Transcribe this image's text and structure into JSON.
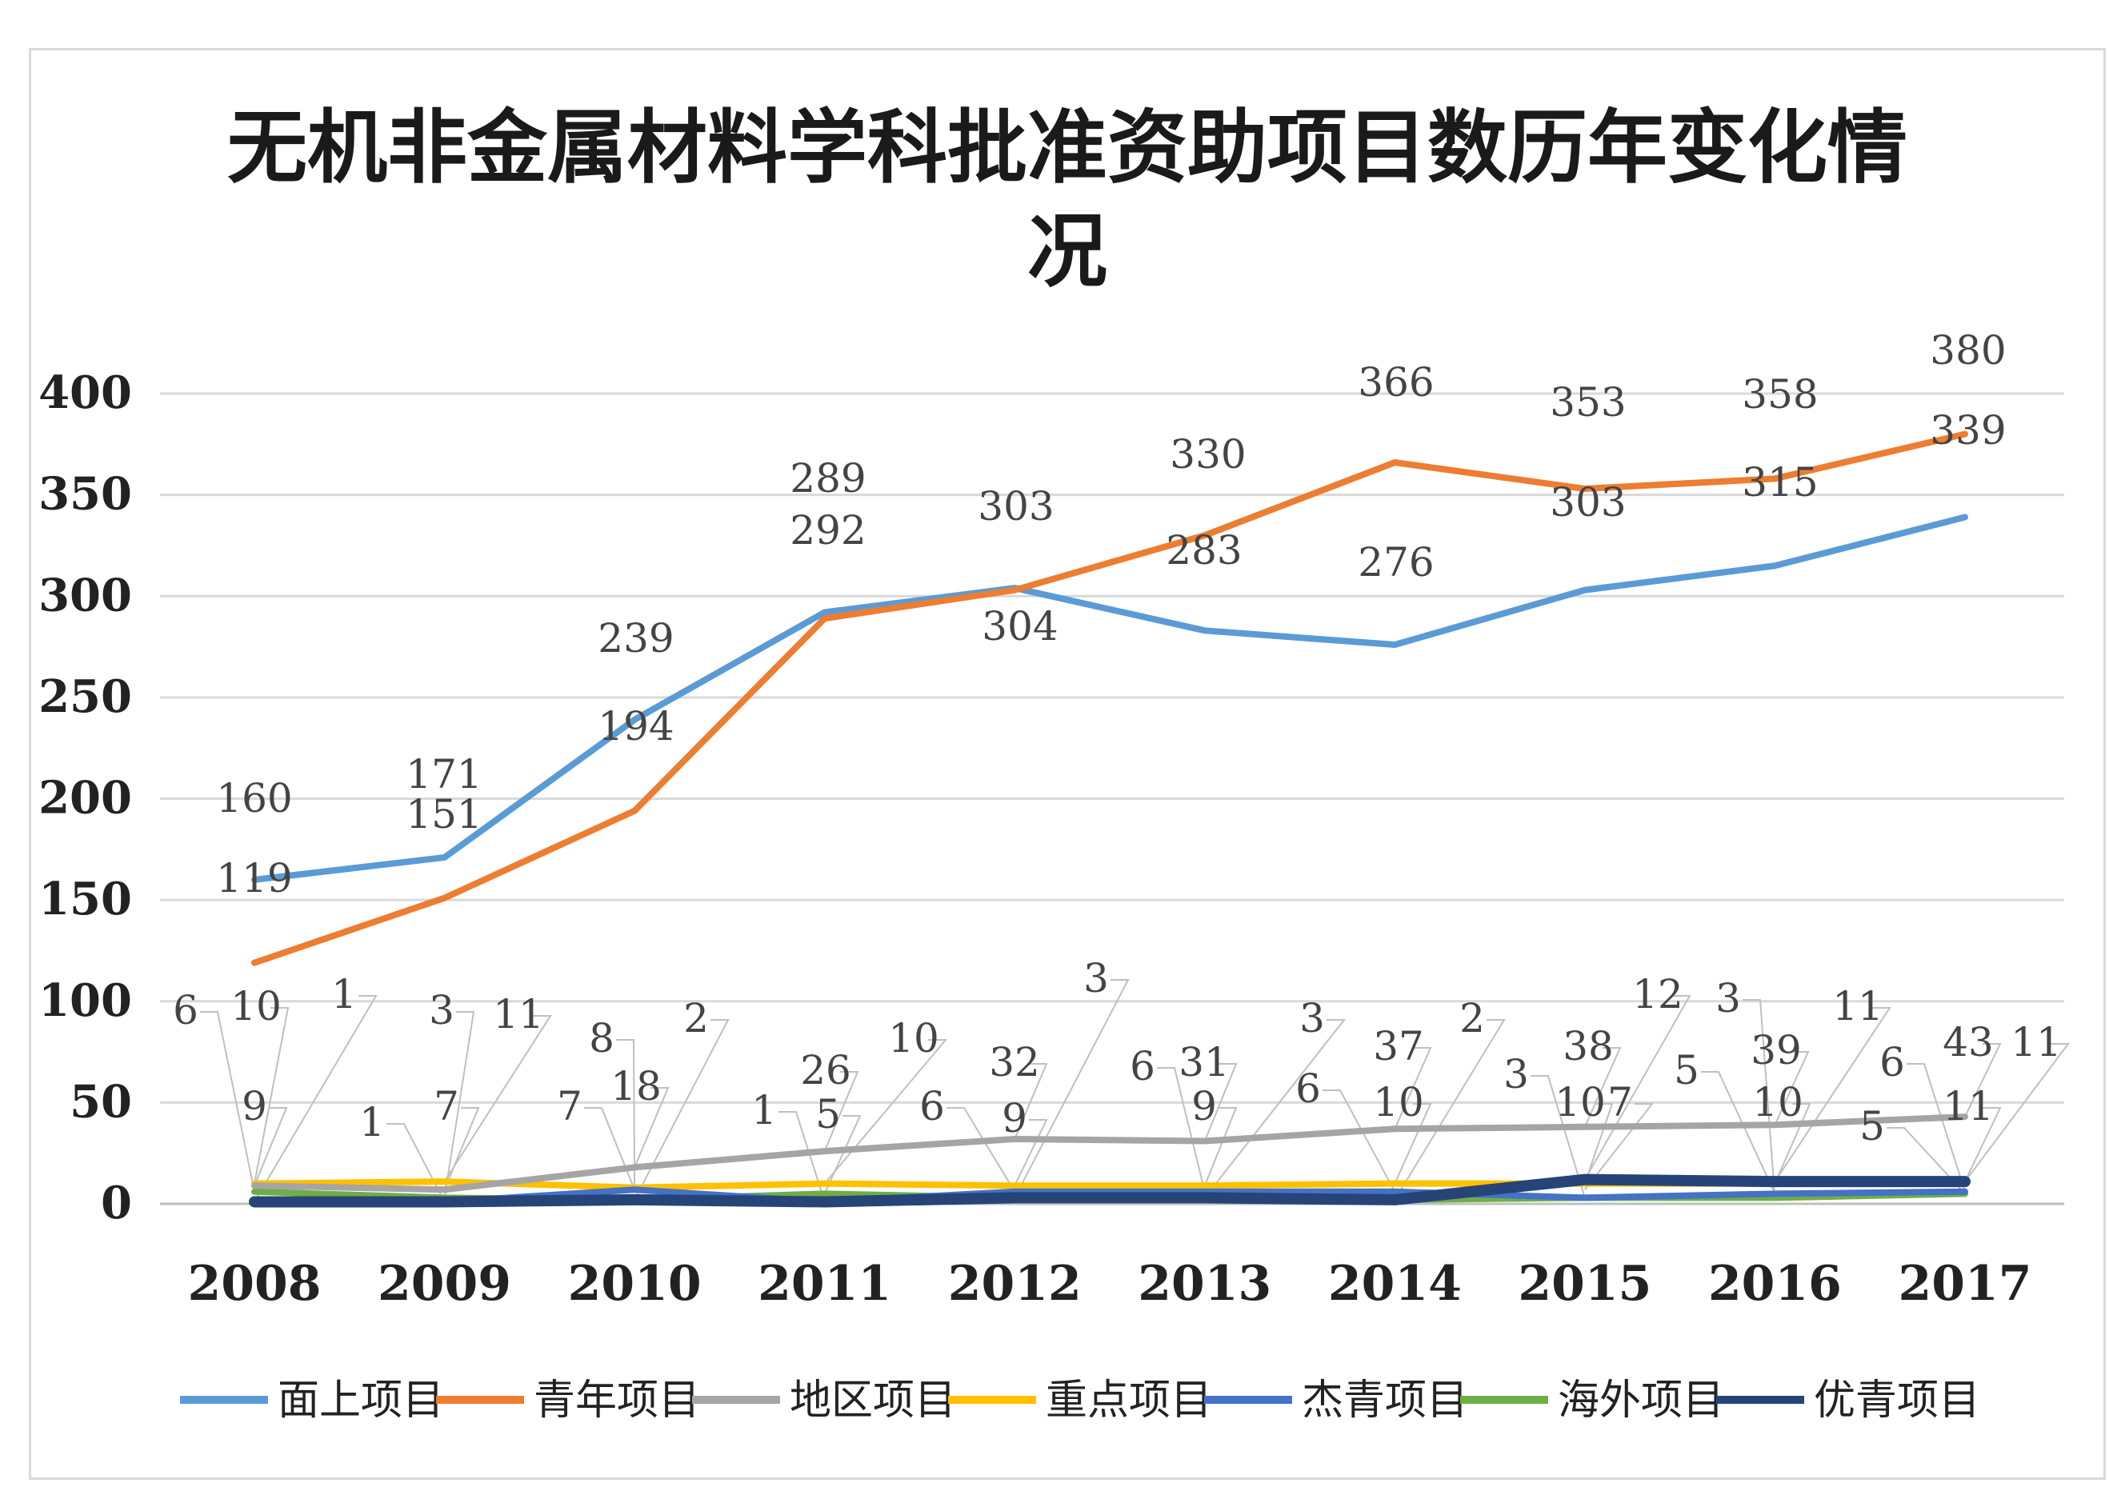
{
  "chart_data": {
    "type": "line",
    "title": "无机非金属材料学科批准资助项目数历年变化情况",
    "title_lines": [
      "无机非金属材料学科批准资助项目数历年变化情",
      "况"
    ],
    "categories": [
      "2008",
      "2009",
      "2010",
      "2011",
      "2012",
      "2013",
      "2014",
      "2015",
      "2016",
      "2017"
    ],
    "ylim": [
      0,
      400
    ],
    "yticks": [
      0,
      50,
      100,
      150,
      200,
      250,
      300,
      350,
      400
    ],
    "grid": true,
    "legend_position": "bottom",
    "series": [
      {
        "name": "面上项目",
        "color": "#5b9bd5",
        "values": [
          160,
          171,
          239,
          292,
          304,
          283,
          276,
          303,
          315,
          339
        ]
      },
      {
        "name": "青年项目",
        "color": "#ed7d31",
        "values": [
          119,
          151,
          194,
          289,
          303,
          330,
          366,
          353,
          358,
          380
        ]
      },
      {
        "name": "地区项目",
        "color": "#a5a5a5",
        "values": [
          9,
          7,
          18,
          26,
          32,
          31,
          37,
          38,
          39,
          43
        ]
      },
      {
        "name": "重点项目",
        "color": "#ffc000",
        "values": [
          10,
          11,
          8,
          10,
          9,
          9,
          10,
          10,
          10,
          11
        ]
      },
      {
        "name": "杰青项目",
        "color": "#4472c4",
        "values": [
          1,
          1,
          7,
          1,
          6,
          6,
          6,
          3,
          5,
          6
        ]
      },
      {
        "name": "海外项目",
        "color": "#70ad47",
        "values": [
          6,
          3,
          2,
          5,
          3,
          3,
          2,
          3,
          3,
          5
        ]
      },
      {
        "name": "优青项目",
        "color": "#264478",
        "values": [
          1,
          1,
          2,
          1,
          3,
          3,
          2,
          12,
          11,
          11
        ]
      }
    ],
    "labels": [
      {
        "text": "160"
      },
      {
        "text": "119"
      },
      {
        "text": "171"
      },
      {
        "text": "151"
      },
      {
        "text": "239"
      },
      {
        "text": "194"
      },
      {
        "text": "289"
      },
      {
        "text": "292"
      },
      {
        "text": "303"
      },
      {
        "text": "304"
      },
      {
        "text": "330"
      },
      {
        "text": "283"
      },
      {
        "text": "366"
      },
      {
        "text": "276"
      },
      {
        "text": "353"
      },
      {
        "text": "303"
      },
      {
        "text": "358"
      },
      {
        "text": "315"
      },
      {
        "text": "380"
      },
      {
        "text": "339"
      },
      {
        "text": "6"
      },
      {
        "text": "10"
      },
      {
        "text": "1"
      },
      {
        "text": "9"
      },
      {
        "text": "3"
      },
      {
        "text": "11"
      },
      {
        "text": "1"
      },
      {
        "text": "7"
      },
      {
        "text": "8"
      },
      {
        "text": "2"
      },
      {
        "text": "7"
      },
      {
        "text": "18"
      },
      {
        "text": "26"
      },
      {
        "text": "10"
      },
      {
        "text": "1"
      },
      {
        "text": "5"
      },
      {
        "text": "3"
      },
      {
        "text": "32"
      },
      {
        "text": "6"
      },
      {
        "text": "9"
      },
      {
        "text": "3"
      },
      {
        "text": "6"
      },
      {
        "text": "31"
      },
      {
        "text": "9"
      },
      {
        "text": "2"
      },
      {
        "text": "37"
      },
      {
        "text": "6"
      },
      {
        "text": "10"
      },
      {
        "text": "12"
      },
      {
        "text": "38"
      },
      {
        "text": "3"
      },
      {
        "text": "10"
      },
      {
        "text": "7"
      },
      {
        "text": "3"
      },
      {
        "text": "11"
      },
      {
        "text": "39"
      },
      {
        "text": "5"
      },
      {
        "text": "10"
      },
      {
        "text": "6"
      },
      {
        "text": "43"
      },
      {
        "text": "11"
      },
      {
        "text": "5"
      },
      {
        "text": "11"
      }
    ]
  }
}
